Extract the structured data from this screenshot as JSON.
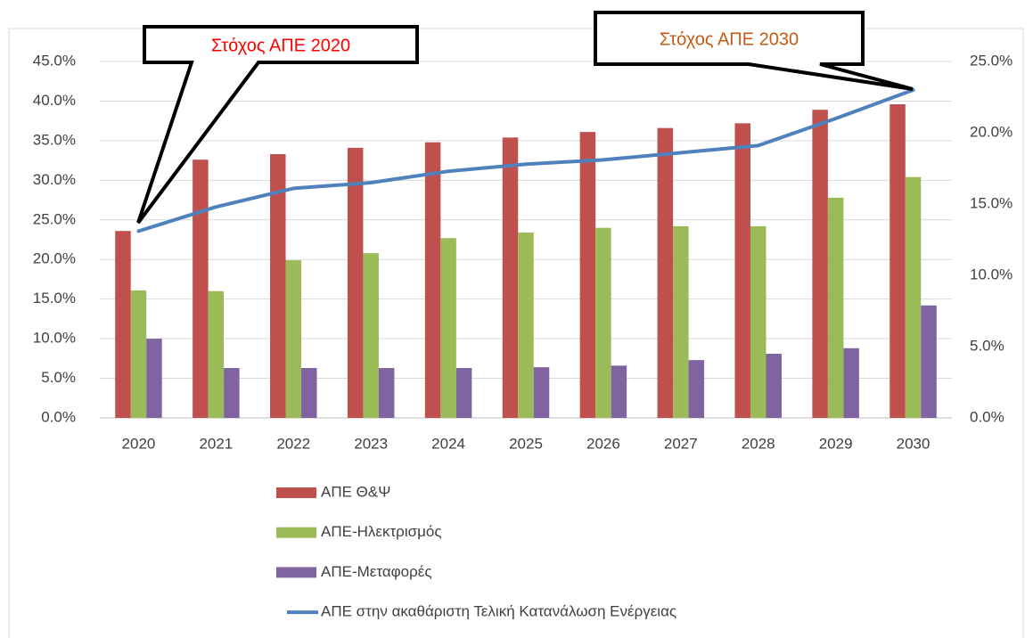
{
  "chart_data": {
    "type": "bar",
    "categories": [
      "2020",
      "2021",
      "2022",
      "2023",
      "2024",
      "2025",
      "2026",
      "2027",
      "2028",
      "2029",
      "2030"
    ],
    "series": [
      {
        "name": "ΑΠΕ Θ&Ψ",
        "type": "bar",
        "color": "#c0504d",
        "values": [
          23.6,
          32.6,
          33.3,
          34.1,
          34.8,
          35.4,
          36.1,
          36.6,
          37.2,
          38.9,
          39.6
        ]
      },
      {
        "name": "ΑΠΕ-Ηλεκτρισμός",
        "type": "bar",
        "color": "#9bbb59",
        "values": [
          16.1,
          16.0,
          19.9,
          20.8,
          22.7,
          23.4,
          24.0,
          24.2,
          24.2,
          27.8,
          30.4
        ]
      },
      {
        "name": "ΑΠΕ-Μεταφορές",
        "type": "bar",
        "color": "#8064a2",
        "values": [
          10.0,
          6.3,
          6.3,
          6.3,
          6.3,
          6.4,
          6.6,
          7.3,
          8.1,
          8.8,
          14.2
        ]
      },
      {
        "name": "ΑΠΕ στην ακαθάριστη Τελική Κατανάλωση Ενέργειας",
        "type": "line",
        "axis": "y2",
        "color": "#4f81bd",
        "values": [
          13.1,
          14.8,
          16.1,
          16.5,
          17.3,
          17.8,
          18.1,
          18.6,
          19.1,
          21.0,
          23.0
        ]
      }
    ],
    "ylim": [
      0,
      45
    ],
    "yticks": [
      {
        "value": 0,
        "label": "0.0%"
      },
      {
        "value": 5,
        "label": "5.0%"
      },
      {
        "value": 10,
        "label": "10.0%"
      },
      {
        "value": 15,
        "label": "15.0%"
      },
      {
        "value": 20,
        "label": "20.0%"
      },
      {
        "value": 25,
        "label": "25.0%"
      },
      {
        "value": 30,
        "label": "30.0%"
      },
      {
        "value": 35,
        "label": "35.0%"
      },
      {
        "value": 40,
        "label": "40.0%"
      },
      {
        "value": 45,
        "label": "45.0%"
      }
    ],
    "y2lim": [
      0,
      25
    ],
    "y2ticks": [
      {
        "value": 0,
        "label": "0.0%"
      },
      {
        "value": 5,
        "label": "5.0%"
      },
      {
        "value": 10,
        "label": "10.0%"
      },
      {
        "value": 15,
        "label": "15.0%"
      },
      {
        "value": 20,
        "label": "20.0%"
      },
      {
        "value": 25,
        "label": "25.0%"
      }
    ],
    "grid": true,
    "legend": "bottom",
    "annotations": [
      {
        "text": "Στόχος ΑΠΕ 2020",
        "color": "#ff0000"
      },
      {
        "text": "Στόχος ΑΠΕ 2030",
        "color": "#c55a11"
      }
    ]
  }
}
